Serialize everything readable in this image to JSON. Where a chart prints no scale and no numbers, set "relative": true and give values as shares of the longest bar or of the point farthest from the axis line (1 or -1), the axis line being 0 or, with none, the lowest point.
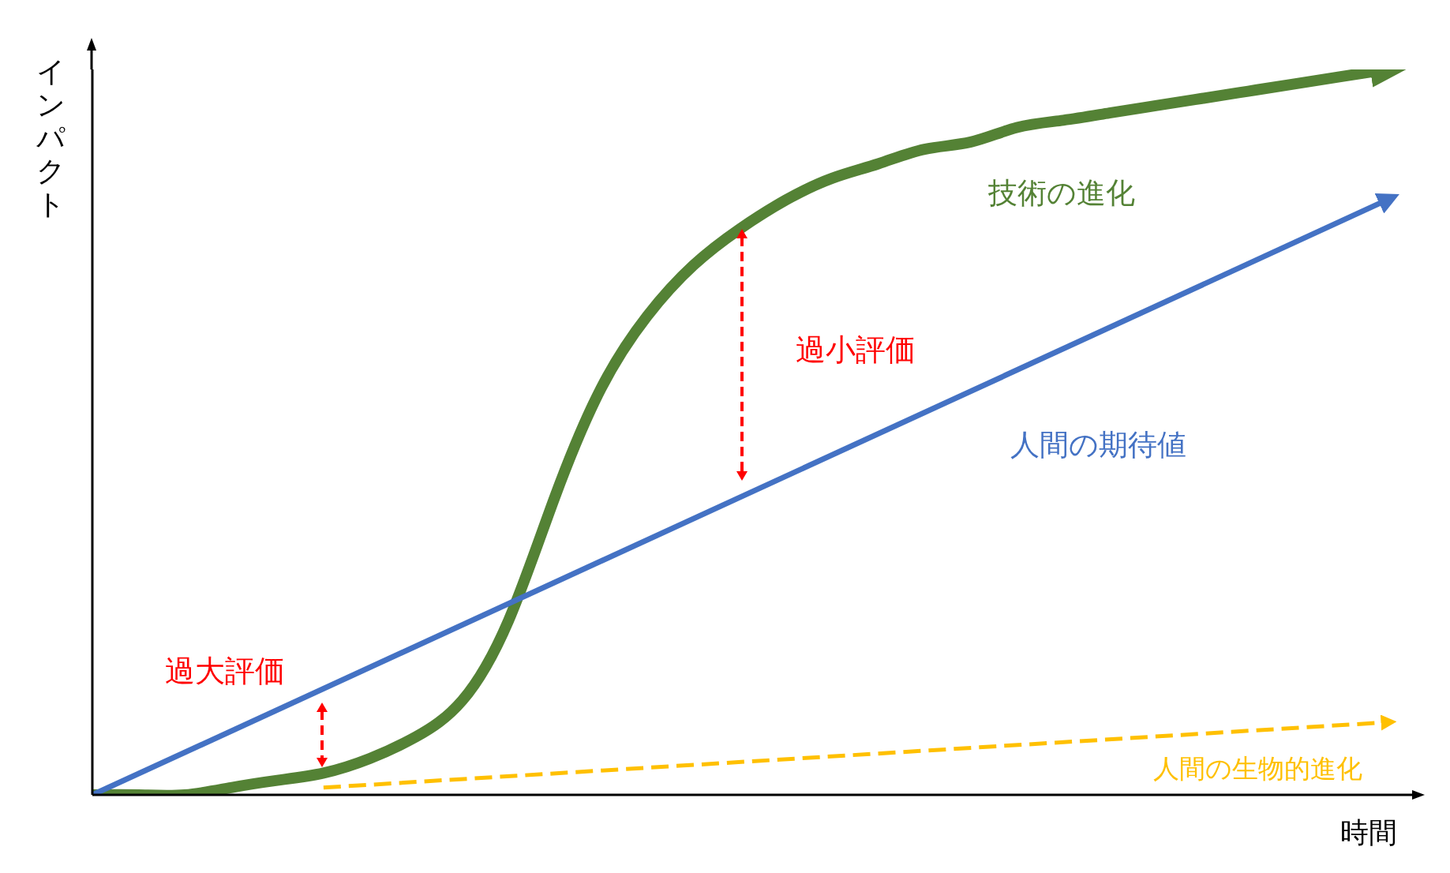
{
  "chart_data": {
    "type": "line",
    "relative": true,
    "xlabel": "時間",
    "ylabel": "インパクト",
    "marker": "none",
    "categories": [
      null,
      null,
      null,
      null,
      null,
      null,
      null,
      null,
      null,
      null,
      null,
      null,
      null,
      null,
      null,
      null,
      null,
      null,
      null,
      null,
      null,
      null,
      null,
      null,
      null,
      null,
      null,
      null,
      null
    ],
    "series": [
      {
        "name": "技術の進化",
        "color": "#548235",
        "values": [
          0,
          0,
          0,
          0.01,
          0.02,
          0.03,
          0.05,
          0.08,
          0.13,
          0.24,
          0.41,
          0.56,
          0.66,
          0.73,
          0.78,
          0.82,
          0.85,
          0.87,
          0.89,
          0.9,
          0.92,
          0.93,
          0.94,
          0.95,
          0.96,
          0.97,
          0.98,
          0.99,
          1
        ]
      },
      {
        "name": "人間の期待値",
        "color": "#4472c4",
        "values": [
          0,
          null,
          null,
          null,
          null,
          null,
          null,
          null,
          null,
          null,
          null,
          null,
          null,
          null,
          null,
          null,
          null,
          null,
          null,
          null,
          null,
          null,
          null,
          null,
          null,
          null,
          null,
          null,
          0.82
        ]
      },
      {
        "name": "人間の生物的進化",
        "color": "#ffc000",
        "line_style": "dashed",
        "values": [
          null,
          null,
          null,
          null,
          null,
          0.01,
          null,
          null,
          null,
          null,
          null,
          null,
          null,
          null,
          null,
          null,
          null,
          null,
          null,
          null,
          null,
          null,
          null,
          null,
          null,
          null,
          null,
          null,
          0.1
        ]
      }
    ],
    "annotations": [
      "過大評価",
      "過小評価"
    ]
  }
}
